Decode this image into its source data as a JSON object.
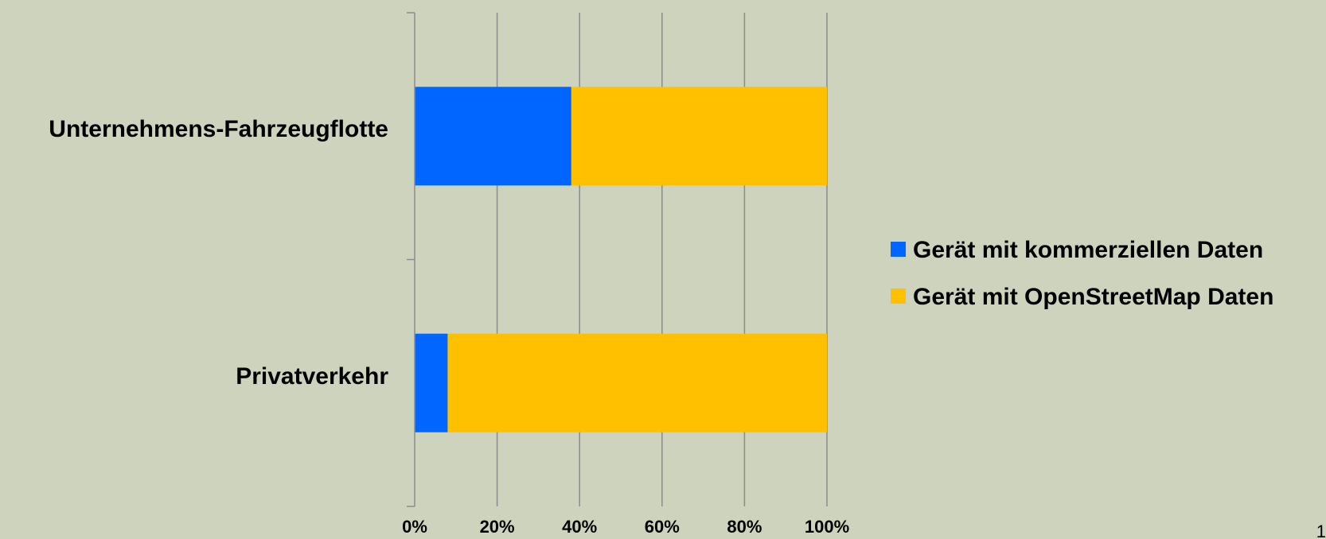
{
  "chart_data": {
    "type": "bar",
    "orientation": "horizontal",
    "stacked": "percent",
    "categories": [
      "Unternehmens-Fahrzeugflotte",
      "Privatverkehr"
    ],
    "series": [
      {
        "name": "Gerät mit kommerziellen Daten",
        "values": [
          38,
          8
        ],
        "color": "#0066ff"
      },
      {
        "name": "Gerät mit OpenStreetMap Daten",
        "values": [
          62,
          92
        ],
        "color": "#ffc000"
      }
    ],
    "x_ticks": [
      "0%",
      "20%",
      "40%",
      "60%",
      "80%",
      "100%"
    ],
    "xlim": [
      0,
      100
    ],
    "grid": true,
    "legend_position": "right"
  },
  "page_number": "1"
}
